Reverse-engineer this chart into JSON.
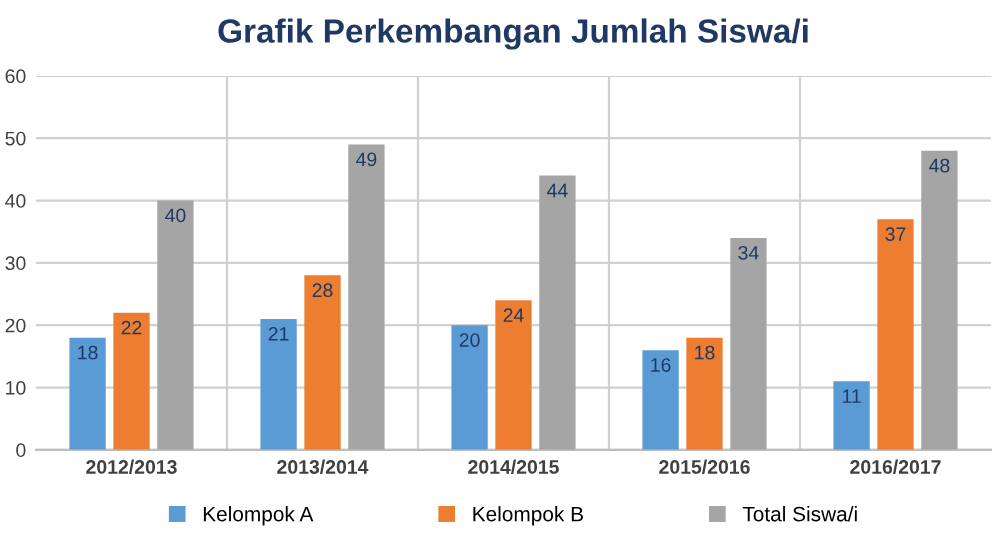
{
  "chart_data": {
    "type": "bar",
    "title": "Grafik Perkembangan Jumlah Siswa/i",
    "categories": [
      "2012/2013",
      "2013/2014",
      "2014/2015",
      "2015/2016",
      "2016/2017"
    ],
    "series": [
      {
        "name": "Kelompok A",
        "color": "#5b9bd5",
        "values": [
          18,
          21,
          20,
          16,
          11
        ]
      },
      {
        "name": "Kelompok B",
        "color": "#ed7d31",
        "values": [
          22,
          28,
          24,
          18,
          37
        ]
      },
      {
        "name": "Total Siswa/i",
        "color": "#a5a5a5",
        "values": [
          40,
          49,
          44,
          34,
          48
        ]
      }
    ],
    "ylim": [
      0,
      60
    ],
    "yticks": [
      0,
      10,
      20,
      30,
      40,
      50,
      60
    ],
    "grid": true,
    "legend": "bottom",
    "data_labels": true
  }
}
